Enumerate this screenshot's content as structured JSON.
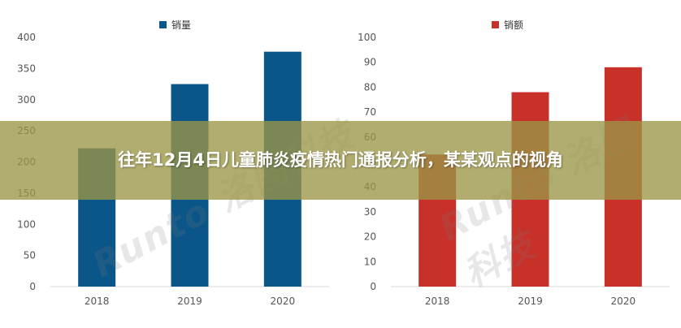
{
  "banner": {
    "title": "往年12月4日儿童肺炎疫情热门通报分析，某某观点的视角"
  },
  "watermark": {
    "left": "Runto 洛图科技",
    "right": "Runto 洛图科技"
  },
  "chart_data": [
    {
      "type": "bar",
      "categories": [
        "2018",
        "2019",
        "2020"
      ],
      "series": [
        {
          "name": "销量",
          "values": [
            222,
            325,
            377
          ],
          "color": "#0a5688"
        }
      ],
      "ylim": [
        0,
        400
      ],
      "yticks": [
        0,
        50,
        100,
        150,
        200,
        250,
        300,
        350,
        400
      ],
      "legend": "top-center",
      "grid": false
    },
    {
      "type": "bar",
      "categories": [
        "2018",
        "2019",
        "2020"
      ],
      "series": [
        {
          "name": "销额",
          "values": [
            53,
            78,
            88
          ],
          "color": "#c8302a"
        }
      ],
      "ylim": [
        0,
        100
      ],
      "yticks": [
        0,
        10,
        20,
        30,
        40,
        50,
        60,
        70,
        80,
        90,
        100
      ],
      "legend": "top-center",
      "grid": false
    }
  ]
}
